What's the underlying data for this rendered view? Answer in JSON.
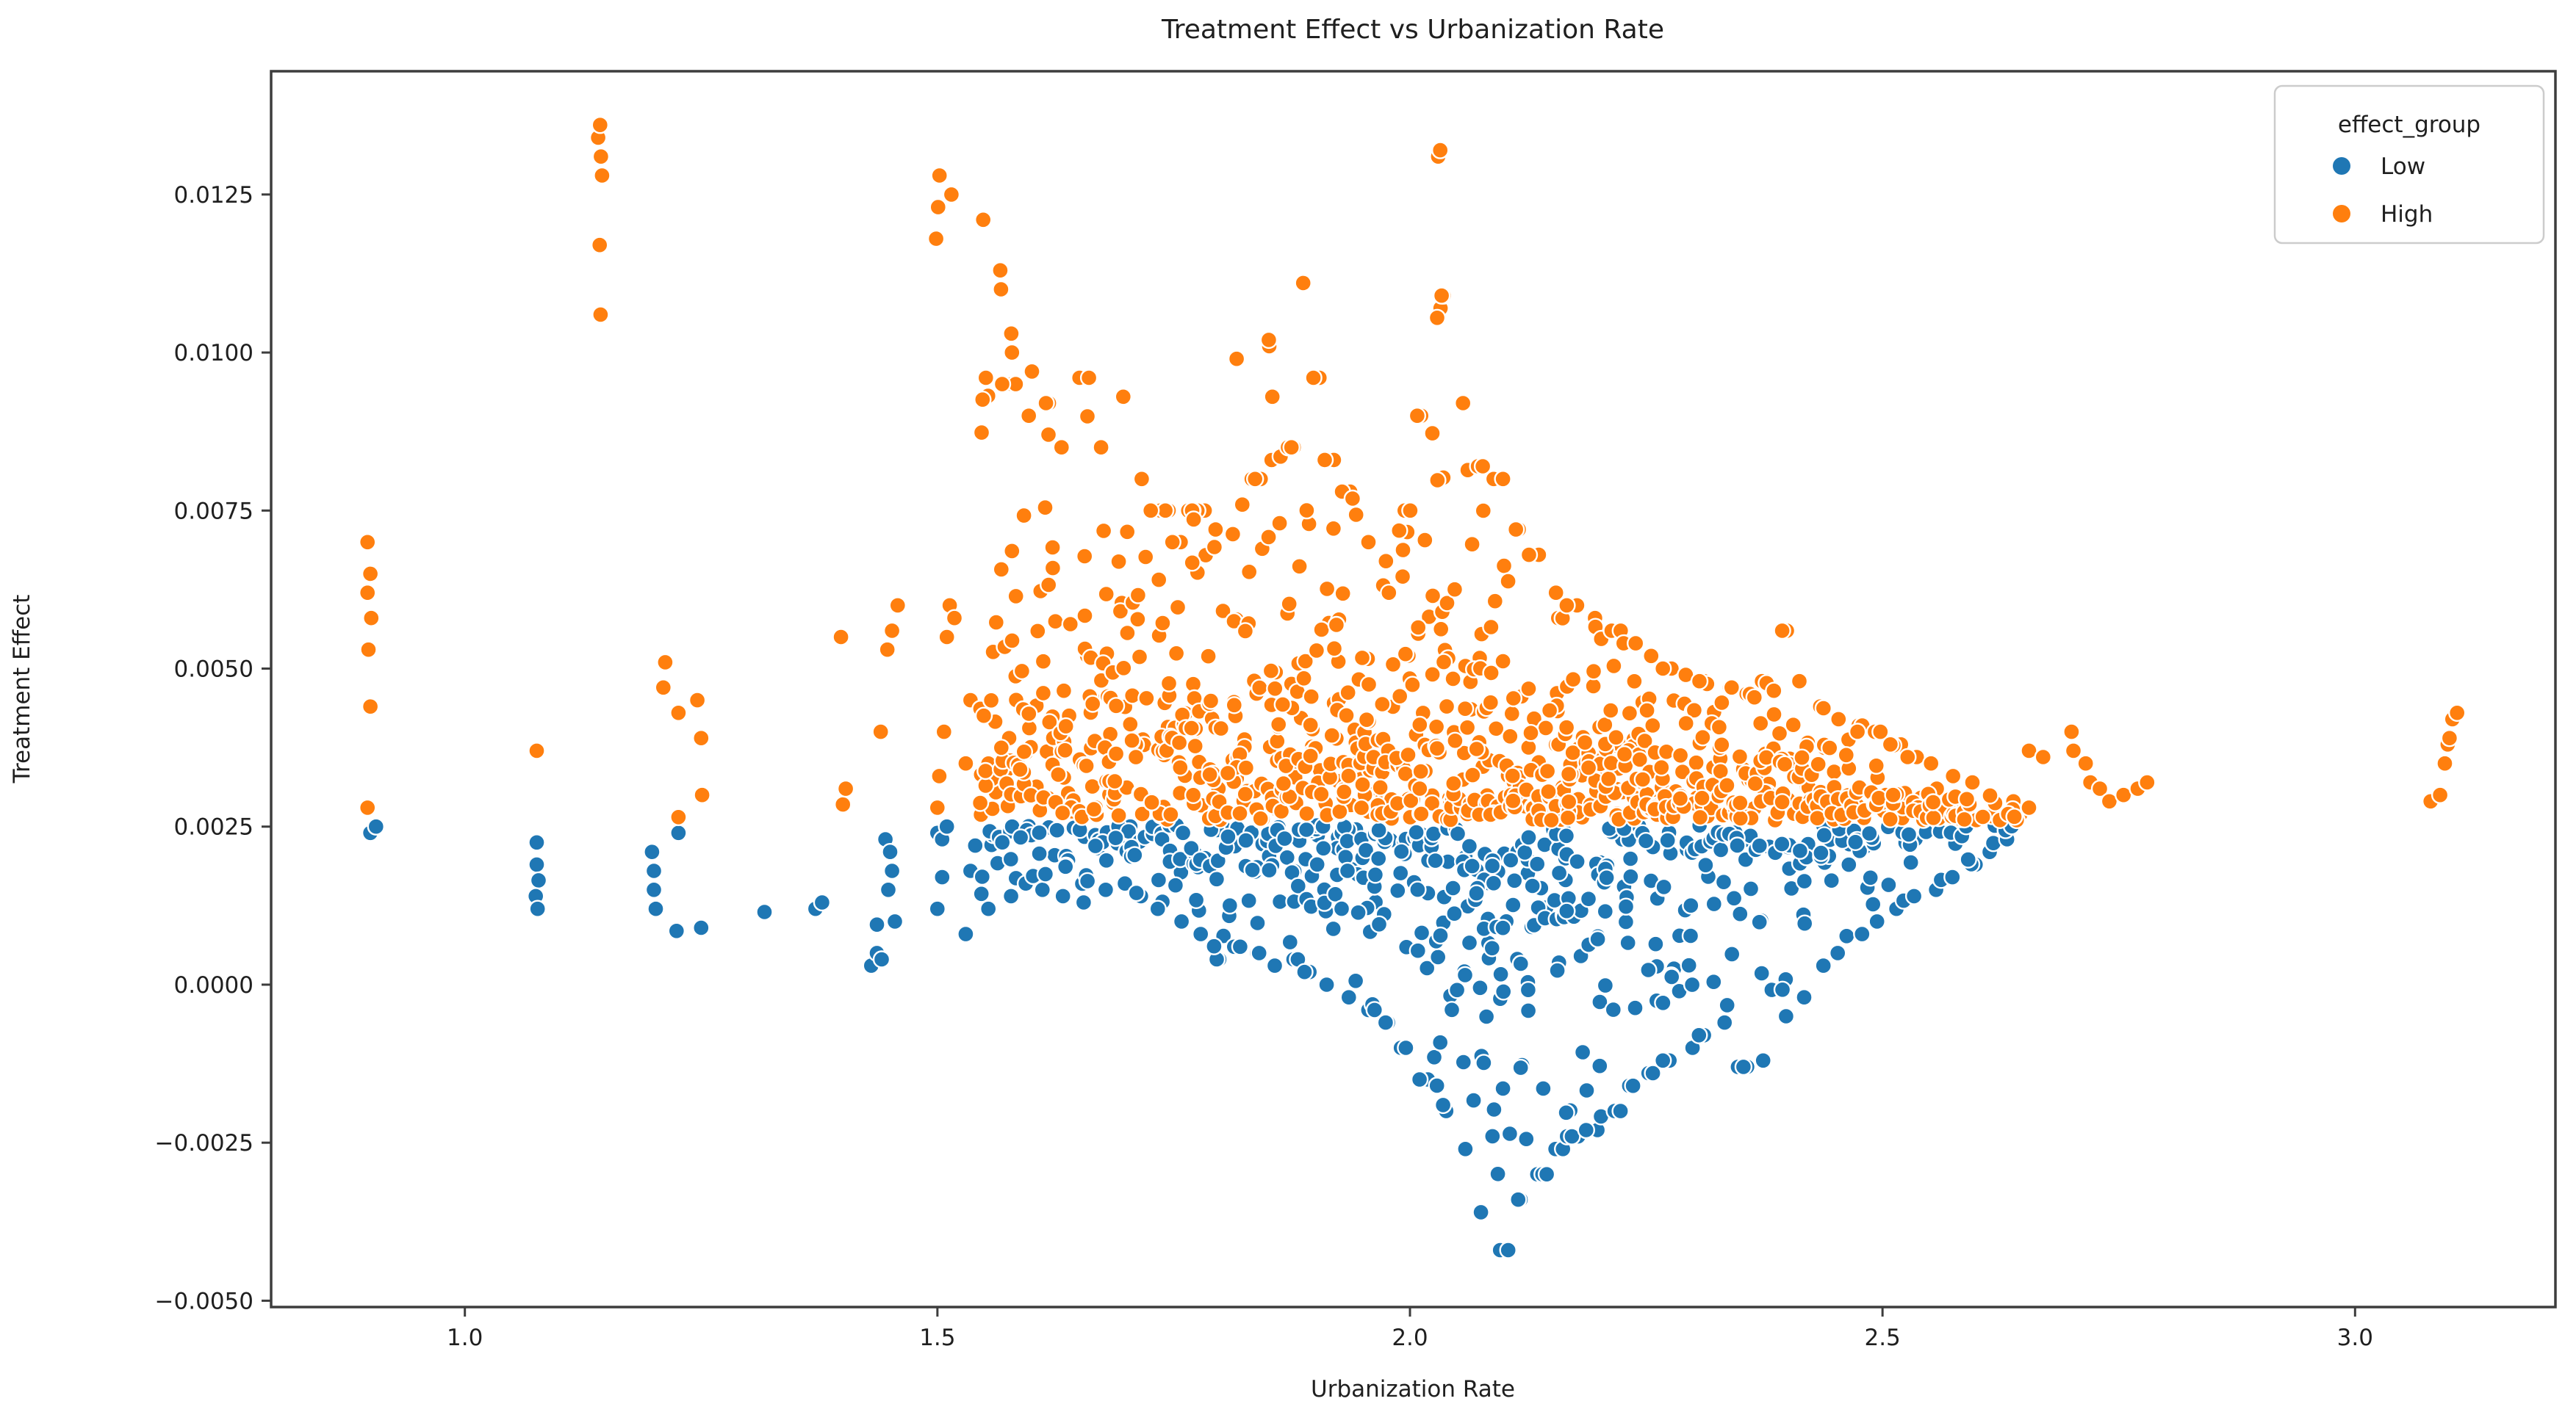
{
  "figure": {
    "title": "Treatment Effect vs Urbanization Rate",
    "background_color": "#ffffff",
    "text_color": "#1f1f1f",
    "spine_color": "#3d3d3d"
  },
  "chart_data": {
    "type": "scatter",
    "title": "Treatment Effect vs Urbanization Rate",
    "xlabel": "Urbanization Rate",
    "ylabel": "Treatment Effect",
    "xlim": [
      0.795,
      3.212
    ],
    "ylim": [
      -0.0051,
      0.01445
    ],
    "grid": false,
    "xticks": {
      "values": [
        1.0,
        1.5,
        2.0,
        2.5,
        3.0
      ],
      "labels": [
        "1.0",
        "1.5",
        "2.0",
        "2.5",
        "3.0"
      ]
    },
    "yticks": {
      "values": [
        -0.005,
        -0.0025,
        0.0,
        0.0025,
        0.005,
        0.0075,
        0.01,
        0.0125
      ],
      "labels": [
        "−0.0050",
        "−0.0025",
        "0.0000",
        "0.0025",
        "0.0050",
        "0.0075",
        "0.0100",
        "0.0125"
      ]
    },
    "legend": {
      "title": "effect_group",
      "position": "upper right",
      "entries": [
        {
          "label": "Low",
          "color": "#1f77b4"
        },
        {
          "label": "High",
          "color": "#ff7f0e"
        }
      ]
    },
    "marker": {
      "radius_px": 11,
      "edge_color": "#ffffff",
      "edge_width": 2.4
    },
    "threshold": 0.0026,
    "low_band_top": 0.00252,
    "series": [
      {
        "name": "Low",
        "color": "#1f77b4",
        "region": "treatment effect below ~0.0026"
      },
      {
        "name": "High",
        "color": "#ff7f0e",
        "region": "treatment effect above ~0.0026"
      }
    ],
    "low_points": [
      [
        0.9,
        0.0024
      ],
      [
        0.906,
        0.0025
      ],
      [
        1.076,
        0.00225
      ],
      [
        1.076,
        0.0019
      ],
      [
        1.078,
        0.00165
      ],
      [
        1.075,
        0.0014
      ],
      [
        1.077,
        0.0012
      ],
      [
        1.198,
        0.0021
      ],
      [
        1.2,
        0.0018
      ],
      [
        1.2,
        0.0015
      ],
      [
        1.202,
        0.0012
      ],
      [
        1.226,
        0.0024
      ],
      [
        1.224,
        0.00085
      ],
      [
        1.25,
        0.0009
      ],
      [
        1.317,
        0.00115
      ],
      [
        1.371,
        0.0012
      ],
      [
        1.378,
        0.0013
      ],
      [
        1.43,
        0.0003
      ],
      [
        1.436,
        0.0005
      ],
      [
        1.436,
        0.00095
      ],
      [
        1.441,
        0.0004
      ],
      [
        1.445,
        0.0023
      ],
      [
        1.45,
        0.0021
      ],
      [
        1.452,
        0.0018
      ],
      [
        1.448,
        0.0015
      ],
      [
        1.455,
        0.001
      ],
      [
        1.5,
        0.0024
      ],
      [
        1.505,
        0.0023
      ],
      [
        1.51,
        0.0025
      ],
      [
        1.505,
        0.0017
      ],
      [
        1.5,
        0.0012
      ],
      [
        1.53,
        0.0008
      ],
      [
        1.535,
        0.0018
      ],
      [
        1.54,
        0.0022
      ]
    ],
    "high_points": [
      [
        0.897,
        0.007
      ],
      [
        0.9,
        0.0065
      ],
      [
        0.897,
        0.0062
      ],
      [
        0.901,
        0.0058
      ],
      [
        0.898,
        0.0053
      ],
      [
        0.9,
        0.0044
      ],
      [
        0.897,
        0.0028
      ],
      [
        1.076,
        0.0037
      ],
      [
        1.212,
        0.0051
      ],
      [
        1.21,
        0.0047
      ],
      [
        1.226,
        0.0043
      ],
      [
        1.246,
        0.0045
      ],
      [
        1.226,
        0.00265
      ],
      [
        1.25,
        0.0039
      ],
      [
        1.251,
        0.003
      ],
      [
        1.4,
        0.00285
      ],
      [
        1.403,
        0.0031
      ],
      [
        1.398,
        0.0055
      ],
      [
        1.44,
        0.004
      ],
      [
        1.447,
        0.0053
      ],
      [
        1.452,
        0.0056
      ],
      [
        1.458,
        0.006
      ],
      [
        1.5,
        0.0028
      ],
      [
        1.502,
        0.0033
      ],
      [
        1.507,
        0.004
      ],
      [
        1.51,
        0.0055
      ],
      [
        1.513,
        0.006
      ],
      [
        1.518,
        0.0058
      ],
      [
        1.53,
        0.0035
      ],
      [
        1.535,
        0.0045
      ],
      [
        2.646,
        0.0027
      ],
      [
        2.655,
        0.0028
      ],
      [
        2.655,
        0.0037
      ],
      [
        2.67,
        0.0036
      ],
      [
        2.7,
        0.004
      ],
      [
        2.702,
        0.0037
      ],
      [
        2.715,
        0.0035
      ],
      [
        2.72,
        0.0032
      ],
      [
        2.73,
        0.0031
      ],
      [
        2.74,
        0.0029
      ],
      [
        2.755,
        0.003
      ],
      [
        2.77,
        0.0031
      ],
      [
        2.78,
        0.0032
      ],
      [
        3.08,
        0.0029
      ],
      [
        3.09,
        0.003
      ],
      [
        3.095,
        0.0035
      ],
      [
        3.098,
        0.0038
      ],
      [
        3.1,
        0.0039
      ],
      [
        3.103,
        0.0042
      ],
      [
        3.108,
        0.0043
      ]
    ],
    "high_stacks": [
      {
        "x": 1.143,
        "ys": [
          0.0106,
          0.0117,
          0.0128,
          0.0131,
          0.0134,
          0.0136
        ]
      },
      {
        "x": 1.5,
        "ys": [
          0.0118,
          0.0123,
          0.0128
        ]
      },
      {
        "x": 1.515,
        "ys": [
          0.0125
        ]
      },
      {
        "x": 1.55,
        "ys": [
          0.0121
        ]
      },
      {
        "x": 1.565,
        "ys": [
          0.011,
          0.0113
        ]
      },
      {
        "x": 1.58,
        "ys": [
          0.01,
          0.0103
        ]
      },
      {
        "x": 1.6,
        "ys": [
          0.0097
        ]
      },
      {
        "x": 1.85,
        "ys": [
          0.0101,
          0.0102
        ]
      },
      {
        "x": 1.89,
        "ys": [
          0.0111
        ]
      },
      {
        "x": 2.03,
        "ys": [
          0.0131,
          0.0132
        ]
      },
      {
        "x": 2.035,
        "ys": [
          0.0107,
          0.0109
        ]
      }
    ],
    "columns": [
      [
        1.555,
        0.0096,
        20,
        0.0012,
        7
      ],
      [
        1.575,
        0.0095,
        22,
        0.0014,
        7
      ],
      [
        1.595,
        0.009,
        18,
        0.0016,
        6
      ],
      [
        1.615,
        0.0092,
        20,
        0.0015,
        6
      ],
      [
        1.635,
        0.0085,
        18,
        0.0014,
        7
      ],
      [
        1.655,
        0.0096,
        20,
        0.0013,
        7
      ],
      [
        1.675,
        0.0085,
        18,
        0.0015,
        8
      ],
      [
        1.695,
        0.0093,
        20,
        0.0016,
        8
      ],
      [
        1.715,
        0.008,
        20,
        0.0014,
        8
      ],
      [
        1.735,
        0.0075,
        20,
        0.0012,
        9
      ],
      [
        1.755,
        0.007,
        20,
        0.001,
        9
      ],
      [
        1.775,
        0.0075,
        22,
        0.0008,
        10
      ],
      [
        1.795,
        0.0072,
        20,
        0.0004,
        10
      ],
      [
        1.815,
        0.0099,
        22,
        0.0006,
        11
      ],
      [
        1.835,
        0.008,
        20,
        0.0005,
        11
      ],
      [
        1.855,
        0.0093,
        22,
        0.0003,
        12
      ],
      [
        1.875,
        0.0085,
        22,
        0.0004,
        12
      ],
      [
        1.895,
        0.0096,
        22,
        0.0002,
        13
      ],
      [
        1.915,
        0.0083,
        22,
        0.0,
        13
      ],
      [
        1.935,
        0.0078,
        22,
        -0.0002,
        14
      ],
      [
        1.955,
        0.007,
        22,
        -0.0004,
        14
      ],
      [
        1.975,
        0.0067,
        22,
        -0.0006,
        14
      ],
      [
        1.995,
        0.0075,
        22,
        -0.001,
        15
      ],
      [
        2.015,
        0.009,
        22,
        -0.0015,
        15
      ],
      [
        2.035,
        0.0109,
        22,
        -0.002,
        16
      ],
      [
        2.055,
        0.0092,
        22,
        -0.0026,
        17
      ],
      [
        2.075,
        0.0082,
        22,
        -0.0036,
        18
      ],
      [
        2.095,
        0.008,
        22,
        -0.0042,
        18
      ],
      [
        2.115,
        0.0072,
        22,
        -0.0034,
        17
      ],
      [
        2.135,
        0.0068,
        22,
        -0.003,
        16
      ],
      [
        2.155,
        0.0062,
        22,
        -0.0026,
        15
      ],
      [
        2.175,
        0.006,
        22,
        -0.0024,
        14
      ],
      [
        2.195,
        0.0058,
        22,
        -0.0023,
        14
      ],
      [
        2.215,
        0.0056,
        22,
        -0.002,
        13
      ],
      [
        2.235,
        0.0054,
        22,
        -0.0016,
        13
      ],
      [
        2.255,
        0.0052,
        20,
        -0.0014,
        12
      ],
      [
        2.275,
        0.005,
        20,
        -0.0012,
        12
      ],
      [
        2.295,
        0.0049,
        20,
        -0.001,
        11
      ],
      [
        2.315,
        0.0048,
        20,
        -0.0008,
        11
      ],
      [
        2.335,
        0.0047,
        18,
        -0.0006,
        10
      ],
      [
        2.355,
        0.0046,
        18,
        -0.0013,
        10
      ],
      [
        2.375,
        0.0048,
        18,
        -0.0012,
        9
      ],
      [
        2.395,
        0.0056,
        16,
        -0.0005,
        9
      ],
      [
        2.415,
        0.0048,
        16,
        -0.0002,
        8
      ],
      [
        2.435,
        0.0044,
        16,
        0.0003,
        8
      ],
      [
        2.455,
        0.0042,
        14,
        0.0005,
        7
      ],
      [
        2.475,
        0.0041,
        14,
        0.0008,
        7
      ],
      [
        2.495,
        0.004,
        12,
        0.001,
        6
      ],
      [
        2.515,
        0.0038,
        12,
        0.0012,
        6
      ],
      [
        2.535,
        0.0036,
        10,
        0.0014,
        5
      ],
      [
        2.555,
        0.0035,
        9,
        0.0015,
        5
      ],
      [
        2.575,
        0.0033,
        8,
        0.0017,
        4
      ],
      [
        2.595,
        0.0032,
        7,
        0.0019,
        4
      ],
      [
        2.615,
        0.003,
        6,
        0.0021,
        3
      ],
      [
        2.635,
        0.0029,
        5,
        0.0023,
        3
      ]
    ]
  }
}
